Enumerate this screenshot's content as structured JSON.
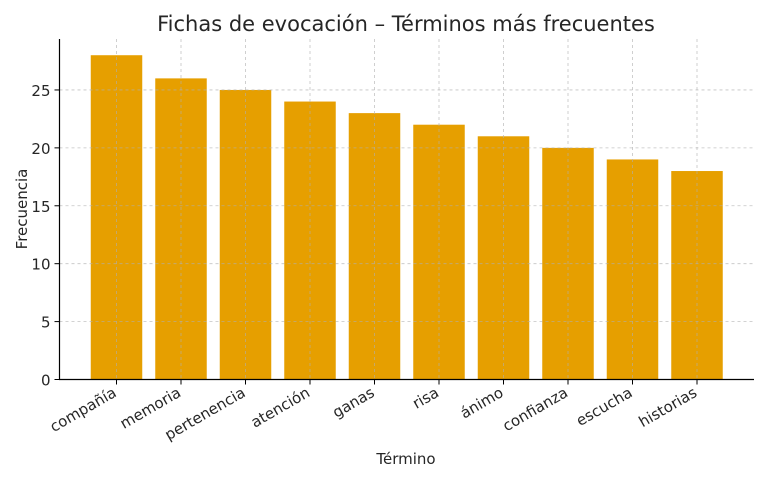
{
  "chart_data": {
    "type": "bar",
    "title": "Fichas de evocación – Términos más frecuentes",
    "xlabel": "Término",
    "ylabel": "Frecuencia",
    "categories": [
      "compañía",
      "memoria",
      "pertenencia",
      "atención",
      "ganas",
      "risa",
      "ánimo",
      "confianza",
      "escucha",
      "historias"
    ],
    "values": [
      28,
      26,
      25,
      24,
      23,
      22,
      21,
      20,
      19,
      18
    ],
    "ylim": [
      0,
      29.4
    ],
    "yticks": [
      0,
      5,
      10,
      15,
      20,
      25
    ],
    "grid": true,
    "bar_color": "#E69F00",
    "grid_color": "#b0b0b0"
  }
}
